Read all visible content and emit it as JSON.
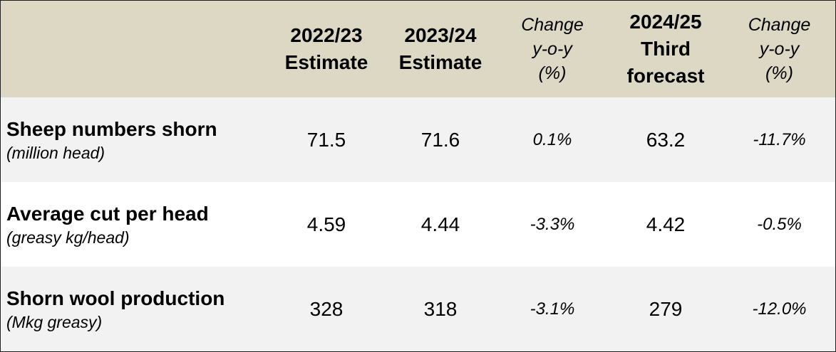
{
  "header": {
    "col1": [
      "2022/23",
      "Estimate"
    ],
    "col2": [
      "2023/24",
      "Estimate"
    ],
    "col3": [
      "Change",
      "y-o-y",
      "(%)"
    ],
    "col4": [
      "2024/25",
      "Third",
      "forecast"
    ],
    "col5": [
      "Change",
      "y-o-y",
      "(%)"
    ]
  },
  "rows": [
    {
      "title": "Sheep numbers shorn",
      "unit": "(million head)",
      "v2223": "71.5",
      "v2324": "71.6",
      "chg1": "0.1%",
      "v2425": "63.2",
      "chg2": "-11.7%"
    },
    {
      "title": "Average cut per head",
      "unit": "(greasy kg/head)",
      "v2223": "4.59",
      "v2324": "4.44",
      "chg1": "-3.3%",
      "v2425": "4.42",
      "chg2": "-0.5%"
    },
    {
      "title": "Shorn wool production",
      "unit": "(Mkg greasy)",
      "v2223": "328",
      "v2324": "318",
      "chg1": "-3.1%",
      "v2425": "279",
      "chg2": "-12.0%"
    }
  ],
  "colors": {
    "header_bg": "#ddd8c4",
    "band_bg": "#f2f2f2",
    "border": "#1e1e1e"
  }
}
